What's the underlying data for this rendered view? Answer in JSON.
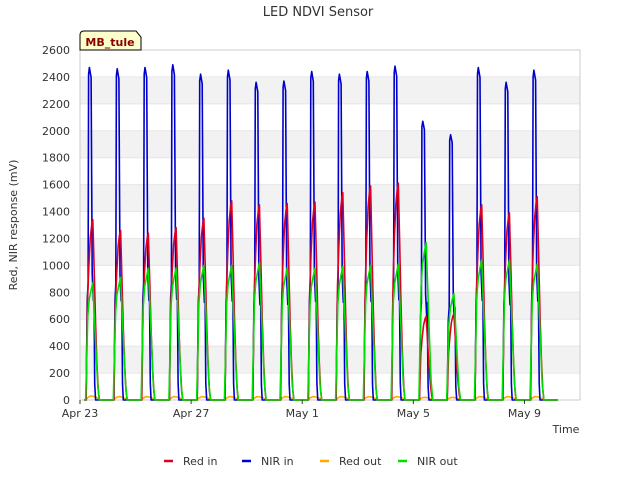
{
  "chart_data": {
    "type": "line",
    "title": "LED NDVI Sensor",
    "xlabel": "Time",
    "ylabel": "Red, NIR response (mV)",
    "site_label": "MB_tule",
    "ylim": [
      0,
      2600
    ],
    "yticks": [
      0,
      200,
      400,
      600,
      800,
      1000,
      1200,
      1400,
      1600,
      1800,
      2000,
      2200,
      2400,
      2600
    ],
    "xlim": [
      "Apr 23",
      "May 11"
    ],
    "xticks": [
      "Apr 23",
      "Apr 27",
      "May 1",
      "May 5",
      "May 9"
    ],
    "grid": "horizontal bands",
    "legend_position": "bottom",
    "days": [
      "Apr 23",
      "Apr 24",
      "Apr 25",
      "Apr 26",
      "Apr 27",
      "Apr 28",
      "Apr 29",
      "Apr 30",
      "May 1",
      "May 2",
      "May 3",
      "May 4",
      "May 5",
      "May 6",
      "May 7",
      "May 8",
      "May 9",
      "May 10"
    ],
    "series": [
      {
        "name": "Red in",
        "color": "#dd0022",
        "daily_peak": [
          1340,
          1260,
          1240,
          1280,
          1350,
          1480,
          1450,
          1460,
          1470,
          1540,
          1590,
          1610,
          620,
          640,
          1450,
          1390,
          1510,
          0
        ]
      },
      {
        "name": "NIR in",
        "color": "#0000cc",
        "daily_peak": [
          2470,
          2460,
          2470,
          2490,
          2420,
          2450,
          2360,
          2370,
          2440,
          2420,
          2440,
          2480,
          2070,
          1970,
          2470,
          2360,
          2450,
          0
        ]
      },
      {
        "name": "Red out",
        "color": "#ffaa00",
        "daily_peak": [
          30,
          25,
          25,
          25,
          25,
          25,
          25,
          25,
          25,
          25,
          25,
          25,
          20,
          20,
          25,
          25,
          25,
          0
        ]
      },
      {
        "name": "NIR out",
        "color": "#00dd00",
        "daily_peak": [
          870,
          910,
          980,
          980,
          1000,
          1000,
          1020,
          980,
          980,
          990,
          1000,
          1010,
          1170,
          790,
          1040,
          1040,
          1010,
          0
        ]
      }
    ]
  }
}
